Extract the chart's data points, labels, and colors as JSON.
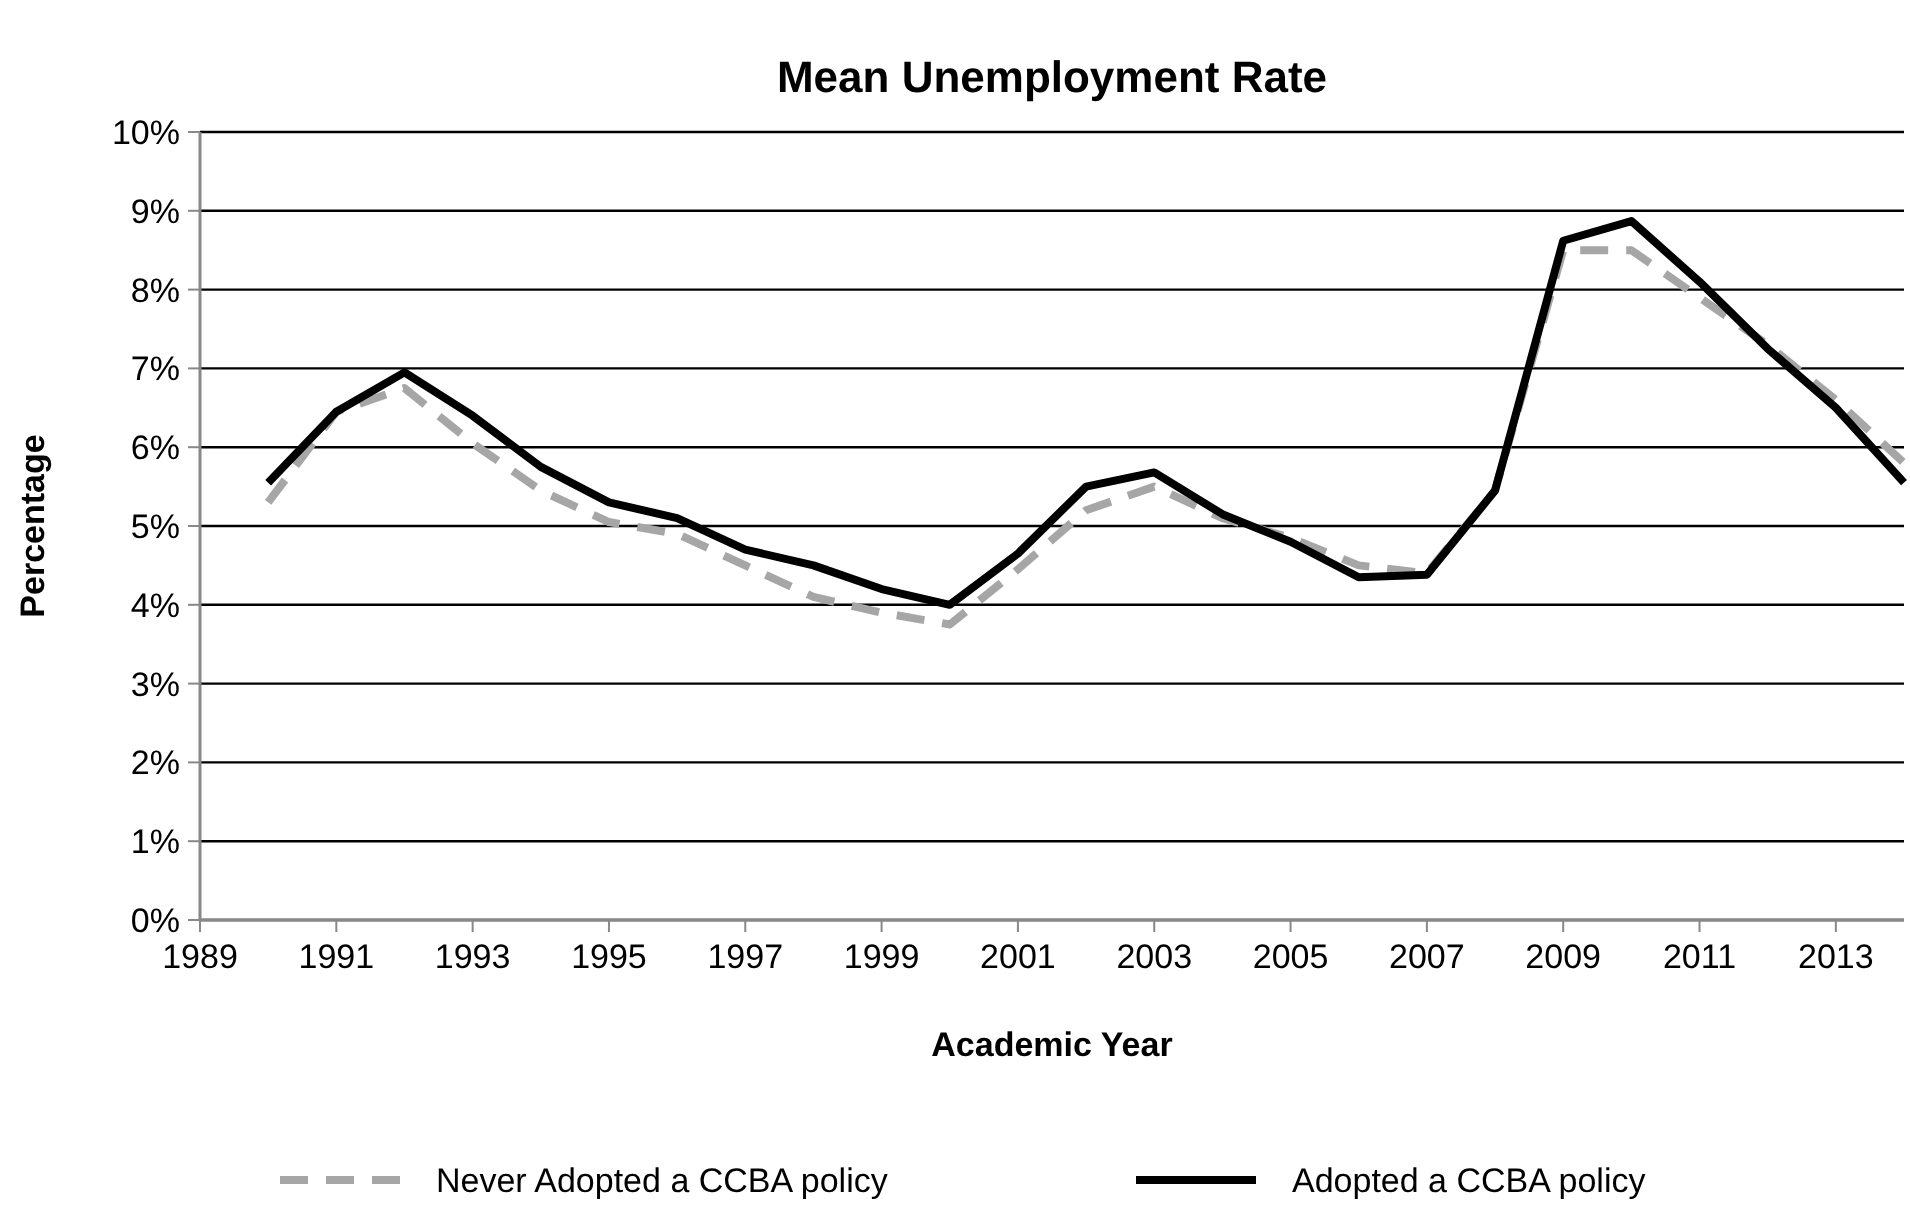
{
  "chart_data": {
    "type": "line",
    "title": "Mean Unemployment Rate",
    "xlabel": "Academic Year",
    "ylabel": "Percentage",
    "x": [
      1990,
      1991,
      1992,
      1993,
      1994,
      1995,
      1996,
      1997,
      1998,
      1999,
      2000,
      2001,
      2002,
      2003,
      2004,
      2005,
      2006,
      2007,
      2008,
      2009,
      2010,
      2011,
      2012,
      2013,
      2014
    ],
    "series": [
      {
        "name": "Never Adopted a CCBA policy",
        "color": "#a6a6a6",
        "line_style": "dashed",
        "values": [
          5.3,
          6.45,
          6.75,
          6.05,
          5.45,
          5.05,
          4.9,
          4.5,
          4.1,
          3.9,
          3.75,
          4.45,
          5.2,
          5.5,
          5.1,
          4.85,
          4.5,
          4.4,
          5.45,
          8.5,
          8.5,
          7.9,
          7.3,
          6.6,
          5.8
        ]
      },
      {
        "name": "Adopted a CCBA policy",
        "color": "#000000",
        "line_style": "solid",
        "values": [
          5.55,
          6.45,
          6.95,
          6.4,
          5.75,
          5.3,
          5.1,
          4.7,
          4.5,
          4.2,
          4.0,
          4.65,
          5.5,
          5.68,
          5.15,
          4.8,
          4.35,
          4.38,
          5.45,
          8.62,
          8.87,
          8.1,
          7.25,
          6.5,
          5.55
        ]
      }
    ],
    "xlim": [
      1989,
      2014
    ],
    "xticks": [
      1989,
      1991,
      1993,
      1995,
      1997,
      1999,
      2001,
      2003,
      2005,
      2007,
      2009,
      2011,
      2013
    ],
    "ylim": [
      0,
      10
    ],
    "yticks": [
      {
        "value": 0,
        "label": "0%"
      },
      {
        "value": 1,
        "label": "1%"
      },
      {
        "value": 2,
        "label": "2%"
      },
      {
        "value": 3,
        "label": "3%"
      },
      {
        "value": 4,
        "label": "4%"
      },
      {
        "value": 5,
        "label": "5%"
      },
      {
        "value": 6,
        "label": "6%"
      },
      {
        "value": 7,
        "label": "7%"
      },
      {
        "value": 8,
        "label": "8%"
      },
      {
        "value": 9,
        "label": "9%"
      },
      {
        "value": 10,
        "label": "10%"
      }
    ],
    "grid": "y",
    "legend": "bottom",
    "marker": "none"
  }
}
